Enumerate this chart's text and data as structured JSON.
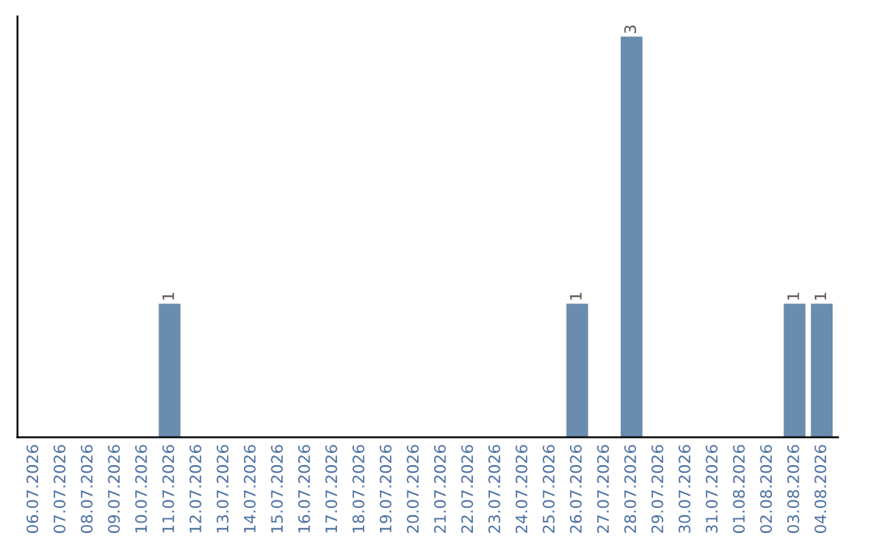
{
  "chart_data": {
    "type": "bar",
    "categories": [
      "06.07.2026",
      "07.07.2026",
      "08.07.2026",
      "09.07.2026",
      "10.07.2026",
      "11.07.2026",
      "12.07.2026",
      "13.07.2026",
      "14.07.2026",
      "15.07.2026",
      "16.07.2026",
      "17.07.2026",
      "18.07.2026",
      "19.07.2026",
      "20.07.2026",
      "21.07.2026",
      "22.07.2026",
      "23.07.2026",
      "24.07.2026",
      "25.07.2026",
      "26.07.2026",
      "27.07.2026",
      "28.07.2026",
      "29.07.2026",
      "30.07.2026",
      "31.07.2026",
      "01.08.2026",
      "02.08.2026",
      "03.08.2026",
      "04.08.2026"
    ],
    "values": [
      0,
      0,
      0,
      0,
      0,
      1,
      0,
      0,
      0,
      0,
      0,
      0,
      0,
      0,
      0,
      0,
      0,
      0,
      0,
      0,
      1,
      0,
      3,
      0,
      0,
      0,
      0,
      0,
      1,
      1
    ],
    "value_labels": [
      null,
      null,
      null,
      null,
      null,
      "1",
      null,
      null,
      null,
      null,
      null,
      null,
      null,
      null,
      null,
      null,
      null,
      null,
      null,
      null,
      "1",
      null,
      "3",
      null,
      null,
      null,
      null,
      null,
      "1",
      "1"
    ],
    "color": "#6a8caf",
    "grid": false,
    "legend": false,
    "tick_labels": "x"
  }
}
